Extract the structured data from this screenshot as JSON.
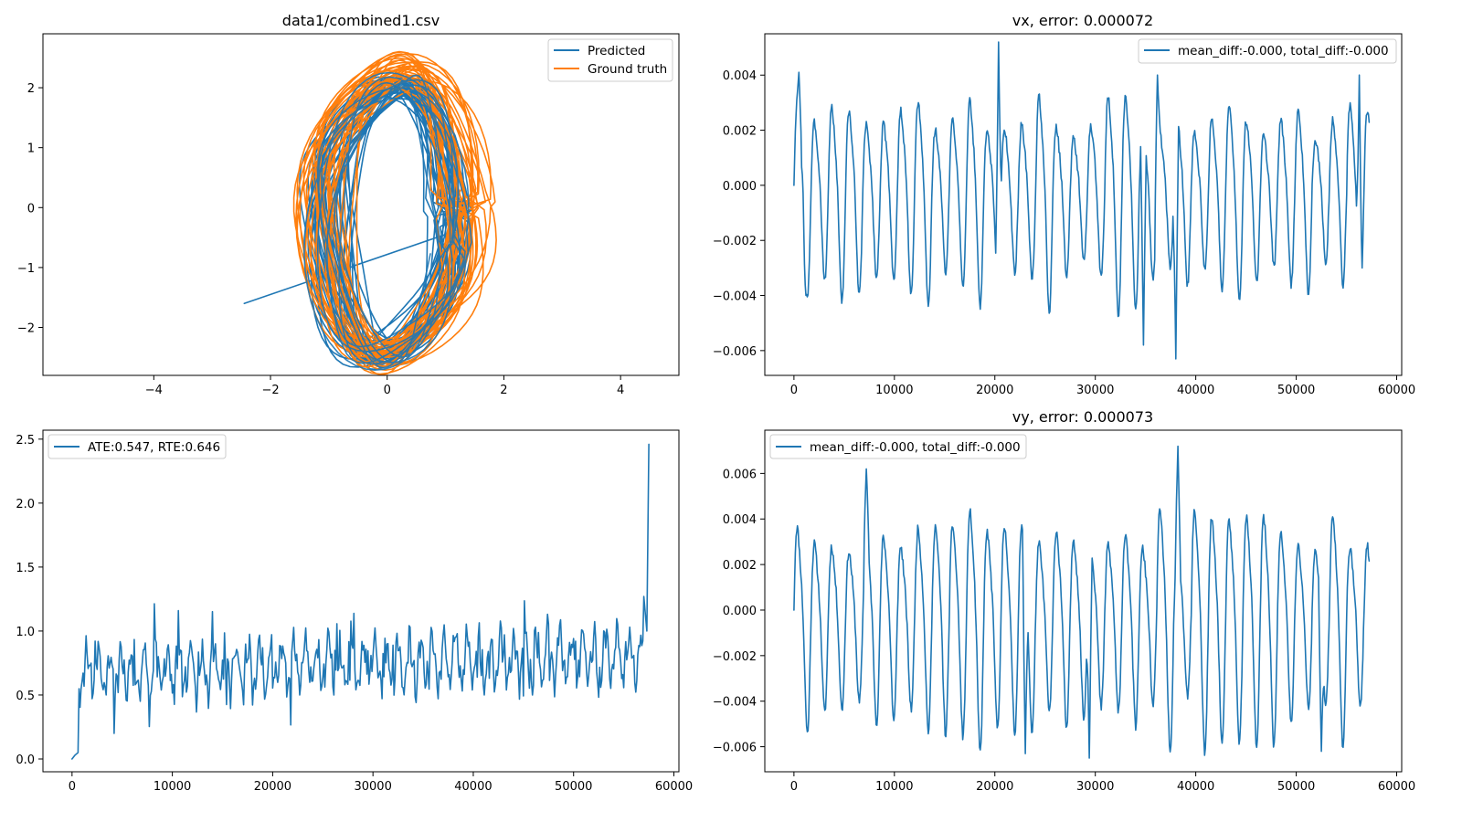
{
  "colors": {
    "blue": "#1f77b4",
    "orange": "#ff7f0e"
  },
  "chart_data": [
    {
      "id": "trajectory",
      "type": "line",
      "title": "data1/combined1.csv",
      "xlim": [
        -5.9,
        5.0
      ],
      "ylim": [
        -2.8,
        2.9
      ],
      "xticks": [
        -4,
        -2,
        0,
        2,
        4
      ],
      "yticks": [
        -2,
        -1,
        0,
        1,
        2
      ],
      "legend_position": "top-right",
      "series": [
        {
          "name": "Predicted",
          "color": "#1f77b4",
          "generator": {
            "kind": "loops",
            "cx": 0.0,
            "cy": -0.2,
            "rx": 1.1,
            "ry": 2.3,
            "turns": 30,
            "start": [
              -2.45,
              -1.6
            ],
            "seed": 7
          }
        },
        {
          "name": "Ground truth",
          "color": "#ff7f0e",
          "generator": {
            "kind": "loops",
            "cx": 0.15,
            "cy": -0.1,
            "rx": 1.3,
            "ry": 2.45,
            "turns": 34,
            "seed": 13
          }
        }
      ]
    },
    {
      "id": "vx",
      "type": "line",
      "title": "vx, error: 0.000072",
      "xlim": [
        -2900,
        60500
      ],
      "ylim": [
        -0.0069,
        0.0055
      ],
      "xticks": [
        0,
        10000,
        20000,
        30000,
        40000,
        50000,
        60000
      ],
      "yticks": [
        -0.006,
        -0.004,
        -0.002,
        0.0,
        0.002,
        0.004
      ],
      "ytick_labels": [
        "−0.006",
        "−0.004",
        "−0.002",
        "0.000",
        "0.002",
        "0.004"
      ],
      "legend_position": "top-right",
      "series": [
        {
          "name": "mean_diff:-0.000, total_diff:-0.000",
          "color": "#1f77b4",
          "generator": {
            "kind": "oscillation",
            "xmax": 57300,
            "period": 1720,
            "center": -0.0003,
            "amp": 0.0032,
            "jitter": 0.0003,
            "seed": 3,
            "peaks": [
              [
                500,
                0.0041
              ],
              [
                20400,
                0.0052
              ],
              [
                36200,
                0.004
              ],
              [
                56300,
                0.004
              ]
            ],
            "troughs": [
              [
                1200,
                -0.004
              ],
              [
                34800,
                -0.0058
              ],
              [
                38000,
                -0.0063
              ]
            ],
            "start": 0.0
          }
        }
      ]
    },
    {
      "id": "ate",
      "type": "line",
      "title": "",
      "xlim": [
        -2900,
        60500
      ],
      "ylim": [
        -0.1,
        2.57
      ],
      "xticks": [
        0,
        10000,
        20000,
        30000,
        40000,
        50000,
        60000
      ],
      "yticks": [
        0.0,
        0.5,
        1.0,
        1.5,
        2.0,
        2.5
      ],
      "ytick_labels": [
        "0.0",
        "0.5",
        "1.0",
        "1.5",
        "2.0",
        "2.5"
      ],
      "legend_position": "top-left",
      "series": [
        {
          "name": "ATE:0.547, RTE:0.646",
          "color": "#1f77b4",
          "generator": {
            "kind": "error",
            "xmax": 57500,
            "seed": 21,
            "start_points": [
              [
                0,
                0.0
              ],
              [
                300,
                0.03
              ],
              [
                600,
                0.05
              ],
              [
                700,
                0.55
              ]
            ],
            "end_points": [
              [
                57000,
                1.27
              ],
              [
                57300,
                1.0
              ],
              [
                57500,
                2.46
              ]
            ]
          }
        }
      ]
    },
    {
      "id": "vy",
      "type": "line",
      "title": "vy, error: 0.000073",
      "xlim": [
        -2900,
        60500
      ],
      "ylim": [
        -0.0071,
        0.0079
      ],
      "xticks": [
        0,
        10000,
        20000,
        30000,
        40000,
        50000,
        60000
      ],
      "yticks": [
        -0.006,
        -0.004,
        -0.002,
        0.0,
        0.002,
        0.004,
        0.006
      ],
      "ytick_labels": [
        "−0.006",
        "−0.004",
        "−0.002",
        "0.000",
        "0.002",
        "0.004",
        "0.006"
      ],
      "legend_position": "top-left",
      "series": [
        {
          "name": "mean_diff:-0.000, total_diff:-0.000",
          "color": "#1f77b4",
          "generator": {
            "kind": "oscillation",
            "xmax": 57300,
            "period": 1720,
            "center": -0.0004,
            "amp": 0.0043,
            "jitter": 0.0004,
            "seed": 11,
            "peaks": [
              [
                7200,
                0.0062
              ],
              [
                38200,
                0.0072
              ]
            ],
            "troughs": [
              [
                23000,
                -0.0063
              ],
              [
                29400,
                -0.0065
              ],
              [
                52500,
                -0.0062
              ]
            ],
            "start": 0.0
          }
        }
      ]
    }
  ]
}
